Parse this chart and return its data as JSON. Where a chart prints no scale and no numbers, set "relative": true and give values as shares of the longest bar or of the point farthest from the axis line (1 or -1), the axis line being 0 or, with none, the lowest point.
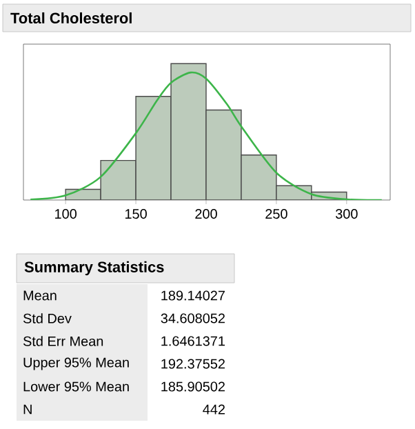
{
  "chart_data": [
    {
      "type": "histogram",
      "title": "Total Cholesterol",
      "relative": true,
      "xlim": [
        70,
        331
      ],
      "xticks": [
        100,
        150,
        200,
        250,
        300
      ],
      "series": [
        {
          "type": "histogram",
          "color": "#bccbbb",
          "bins": [
            75,
            100,
            125,
            150,
            175,
            200,
            225,
            250,
            275,
            300,
            325
          ],
          "values": [
            null,
            0.078,
            0.29,
            0.76,
            1,
            0.66,
            0.33,
            0.105,
            0.058,
            null
          ]
        },
        {
          "type": "line",
          "color": "#3db54a",
          "x": [
            75,
            100,
            125,
            150,
            165,
            175,
            189,
            200,
            215,
            225,
            250,
            275,
            300,
            325
          ],
          "values": [
            0.004,
            0.034,
            0.17,
            0.49,
            0.73,
            0.86,
            0.935,
            0.89,
            0.7,
            0.54,
            0.2,
            0.043,
            0.005,
            0
          ]
        }
      ]
    },
    {
      "type": "other",
      "title": "Summary Statistics",
      "annotations": [
        "Mean",
        "189.14027",
        "Std Dev",
        "34.608052",
        "Std Err Mean",
        "1.6461371",
        "Upper 95% Mean",
        "192.37552",
        "Lower 95% Mean",
        "185.90502",
        "N",
        "442"
      ]
    }
  ]
}
